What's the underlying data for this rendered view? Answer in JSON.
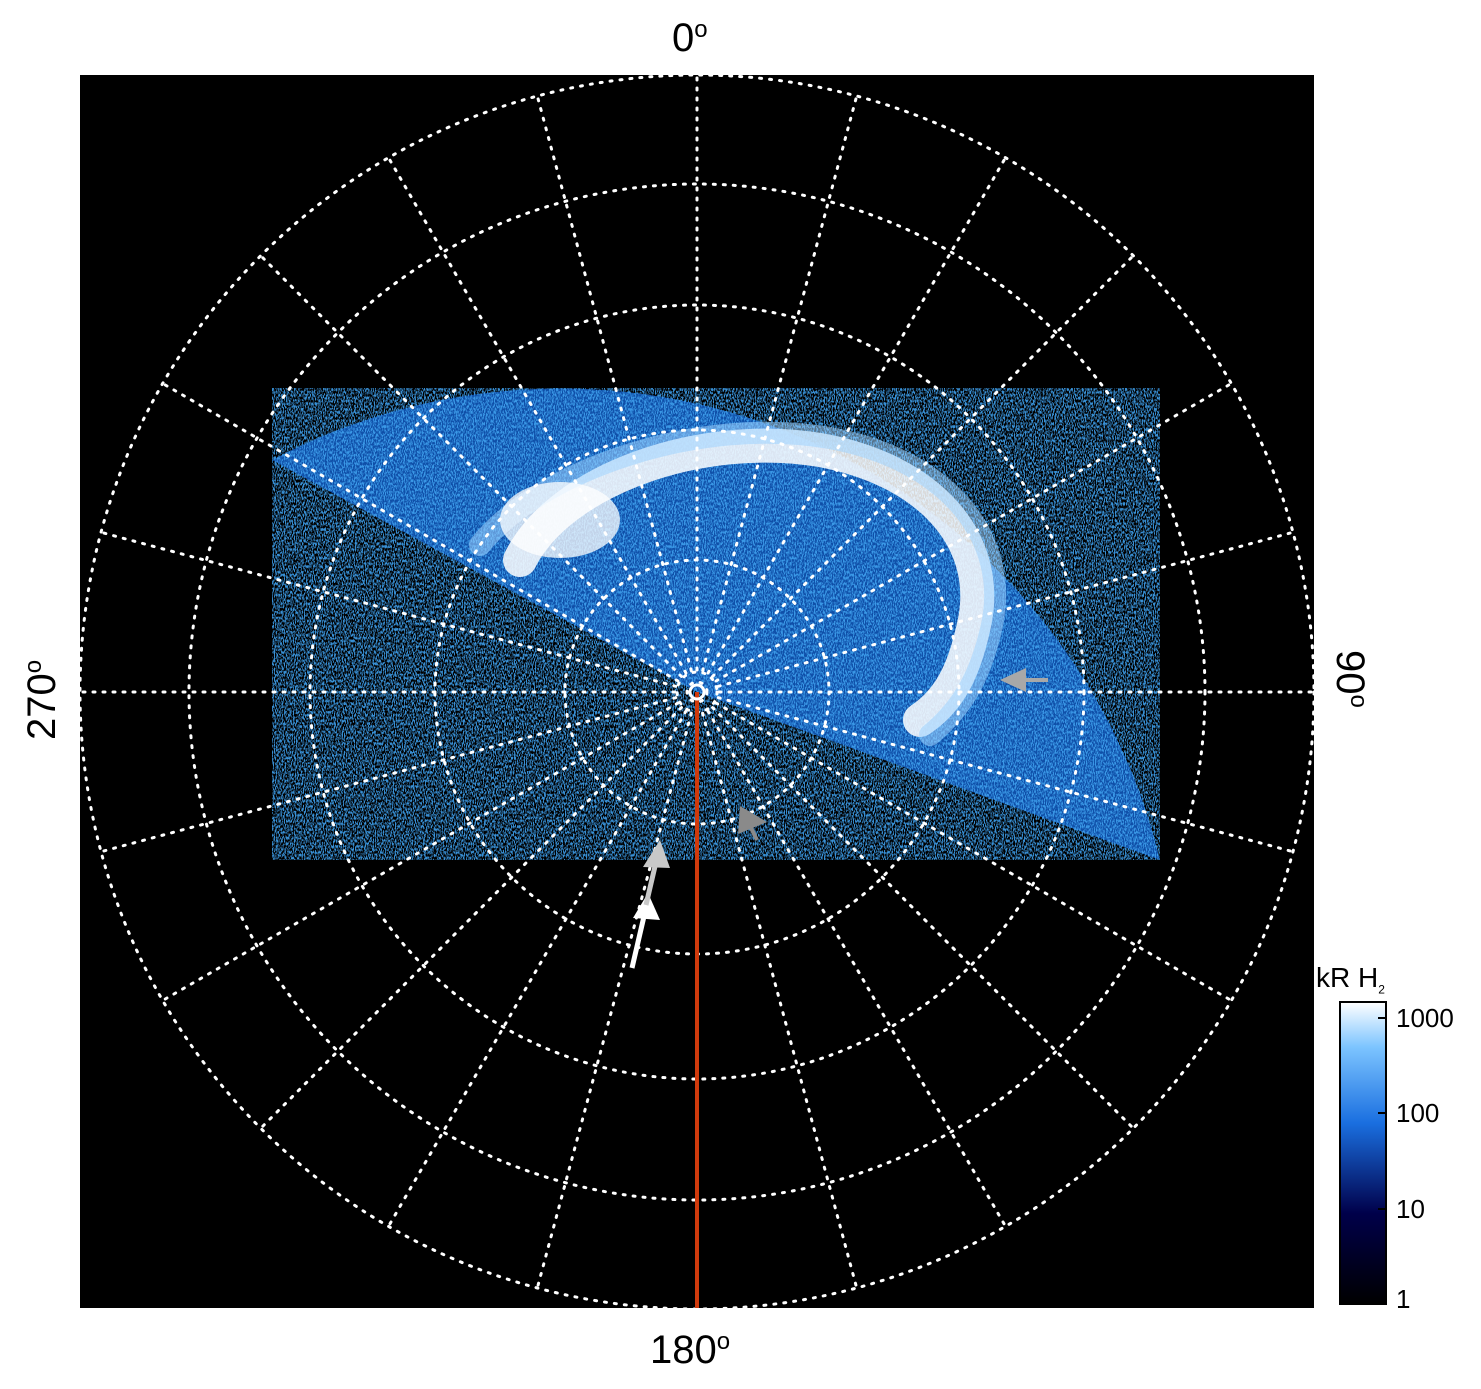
{
  "labels": {
    "top": "0",
    "bottom": "180",
    "left": "270",
    "right": "90",
    "degree_symbol": "o"
  },
  "colorbar": {
    "title": "kR H",
    "title_subscript": "2",
    "scale": "log",
    "ticks": [
      "1000",
      "100",
      "10",
      "1"
    ],
    "colors": [
      "#ffffff",
      "#2a8fff",
      "#00005a",
      "#000000"
    ]
  },
  "colors": {
    "background": "#000000",
    "grid": "#ffffff",
    "meridian_line": "#d03a0c",
    "aurora_blue": "#1a78e6",
    "arrow_white": "#ffffff",
    "arrow_gray": "#a0a0a0"
  }
}
